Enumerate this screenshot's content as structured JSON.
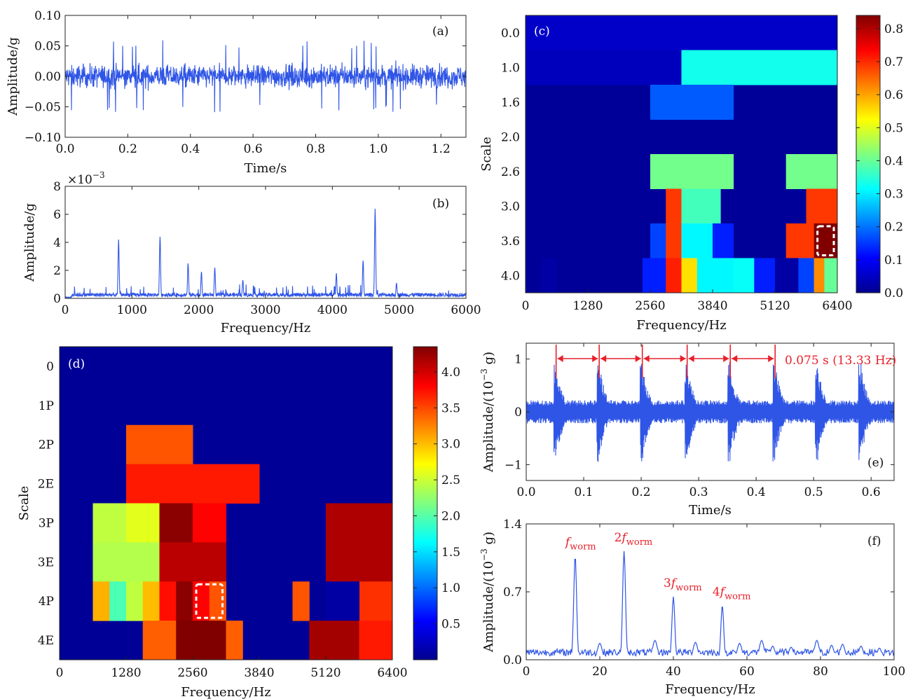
{
  "chart_data": [
    {
      "id": "a",
      "type": "line",
      "panel_label": "(a)",
      "xlabel": "Time/s",
      "ylabel": "Amplitude/g",
      "xlim": [
        0,
        1.28
      ],
      "ylim": [
        -0.1,
        0.1
      ],
      "xticks": [
        0.0,
        0.2,
        0.4,
        0.6,
        0.8,
        1.0,
        1.2
      ],
      "xtick_labels": [
        "0.0",
        "0.2",
        "0.4",
        "0.6",
        "0.8",
        "1.0",
        "1.2"
      ],
      "yticks": [
        -0.1,
        -0.05,
        0.0,
        0.05,
        0.1
      ],
      "ytick_labels": [
        "−0.10",
        "−0.05",
        "0.00",
        "0.05",
        "0.10"
      ],
      "color": "#2f55e6",
      "signal": {
        "kind": "broadband-noise",
        "envelope": 0.02,
        "peak": 0.06
      }
    },
    {
      "id": "b",
      "type": "line",
      "panel_label": "(b)",
      "xlabel": "Frequency/Hz",
      "ylabel": "Amplitude/g",
      "y_multiplier": "×10",
      "y_exponent": "−3",
      "xlim": [
        0,
        6000
      ],
      "ylim": [
        0,
        8
      ],
      "xticks": [
        0,
        1000,
        2000,
        3000,
        4000,
        5000,
        6000
      ],
      "xtick_labels": [
        "0",
        "1000",
        "2000",
        "3000",
        "4000",
        "5000",
        "6000"
      ],
      "yticks": [
        0,
        2,
        4,
        6,
        8
      ],
      "ytick_labels": [
        "0",
        "2",
        "4",
        "6",
        "8"
      ],
      "color": "#2f55e6",
      "baseline": 0.3,
      "peaks": [
        {
          "x": 800,
          "y": 4.2
        },
        {
          "x": 1420,
          "y": 4.4
        },
        {
          "x": 1840,
          "y": 2.5
        },
        {
          "x": 2040,
          "y": 1.9
        },
        {
          "x": 2240,
          "y": 2.2
        },
        {
          "x": 2660,
          "y": 1.3
        },
        {
          "x": 4060,
          "y": 1.8
        },
        {
          "x": 4460,
          "y": 2.7
        },
        {
          "x": 4640,
          "y": 6.4
        },
        {
          "x": 4960,
          "y": 1.1
        }
      ]
    },
    {
      "id": "c",
      "type": "heatmap",
      "panel_label": "(c)",
      "xlabel": "Frequency/Hz",
      "ylabel": "Scale",
      "xlim": [
        0,
        6400
      ],
      "xticks": [
        0,
        1280,
        2560,
        3840,
        5120,
        6400
      ],
      "xtick_labels": [
        "0",
        "1280",
        "2560",
        "3840",
        "5120",
        "6400"
      ],
      "rows": [
        "0.0",
        "1.0",
        "1.6",
        "2.0",
        "2.6",
        "3.0",
        "3.6",
        "4.0"
      ],
      "colorbar": {
        "min": 0,
        "max": 0.84,
        "ticks": [
          0.0,
          0.1,
          0.2,
          0.3,
          0.4,
          0.5,
          0.6,
          0.7,
          0.8
        ],
        "tick_labels": [
          "0.0",
          "0.1",
          "0.2",
          "0.3",
          "0.4",
          "0.5",
          "0.6",
          "0.7",
          "0.8"
        ]
      },
      "background": 0.02,
      "highlight": {
        "row": 6,
        "x0": 5920,
        "x1": 6400
      },
      "cells": [
        {
          "row": 0,
          "x0": 0,
          "x1": 6400,
          "v": 0.06
        },
        {
          "row": 1,
          "x0": 0,
          "x1": 3200,
          "v": 0.05
        },
        {
          "row": 1,
          "x0": 3200,
          "x1": 6400,
          "v": 0.33
        },
        {
          "row": 2,
          "x0": 2560,
          "x1": 4266,
          "v": 0.18
        },
        {
          "row": 4,
          "x0": 2560,
          "x1": 4266,
          "v": 0.41
        },
        {
          "row": 4,
          "x0": 5346,
          "x1": 6400,
          "v": 0.41
        },
        {
          "row": 5,
          "x0": 2880,
          "x1": 3200,
          "v": 0.69
        },
        {
          "row": 5,
          "x0": 3200,
          "x1": 4000,
          "v": 0.37
        },
        {
          "row": 5,
          "x0": 5760,
          "x1": 6400,
          "v": 0.69
        },
        {
          "row": 6,
          "x0": 2560,
          "x1": 2880,
          "v": 0.16
        },
        {
          "row": 6,
          "x0": 2880,
          "x1": 3200,
          "v": 0.69
        },
        {
          "row": 6,
          "x0": 3200,
          "x1": 3840,
          "v": 0.31
        },
        {
          "row": 6,
          "x0": 3840,
          "x1": 4266,
          "v": 0.13
        },
        {
          "row": 6,
          "x0": 5346,
          "x1": 5920,
          "v": 0.69
        },
        {
          "row": 6,
          "x0": 5920,
          "x1": 6400,
          "v": 0.84
        },
        {
          "row": 7,
          "x0": 320,
          "x1": 640,
          "v": 0.03
        },
        {
          "row": 7,
          "x0": 2400,
          "x1": 2880,
          "v": 0.13
        },
        {
          "row": 7,
          "x0": 2880,
          "x1": 3200,
          "v": 0.71
        },
        {
          "row": 7,
          "x0": 3200,
          "x1": 3520,
          "v": 0.55
        },
        {
          "row": 7,
          "x0": 3520,
          "x1": 4266,
          "v": 0.31
        },
        {
          "row": 7,
          "x0": 4266,
          "x1": 4693,
          "v": 0.32
        },
        {
          "row": 7,
          "x0": 4693,
          "x1": 5120,
          "v": 0.13
        },
        {
          "row": 7,
          "x0": 5120,
          "x1": 5600,
          "v": 0.03
        },
        {
          "row": 7,
          "x0": 5600,
          "x1": 5920,
          "v": 0.16
        },
        {
          "row": 7,
          "x0": 5920,
          "x1": 6133,
          "v": 0.62
        },
        {
          "row": 7,
          "x0": 6133,
          "x1": 6400,
          "v": 0.4
        }
      ]
    },
    {
      "id": "d",
      "type": "heatmap",
      "panel_label": "(d)",
      "xlabel": "Frequency/Hz",
      "ylabel": "Scale",
      "xlim": [
        0,
        6400
      ],
      "xticks": [
        0,
        1280,
        2560,
        3840,
        5120,
        6400
      ],
      "xtick_labels": [
        "0",
        "1280",
        "2560",
        "3840",
        "5120",
        "6400"
      ],
      "rows": [
        "0",
        "1P",
        "2P",
        "2E",
        "3P",
        "3E",
        "4P",
        "4E"
      ],
      "colorbar": {
        "min": 0,
        "max": 4.35,
        "ticks": [
          0.5,
          1.0,
          1.5,
          2.0,
          2.5,
          3.0,
          3.5,
          4.0
        ],
        "tick_labels": [
          "0.5",
          "1.0",
          "1.5",
          "2.0",
          "2.5",
          "3.0",
          "3.5",
          "4.0"
        ]
      },
      "background": 0.1,
      "highlight": {
        "row": 6,
        "x0": 2560,
        "x1": 3200
      },
      "cells": [
        {
          "row": 2,
          "x0": 1280,
          "x1": 2560,
          "v": 3.45
        },
        {
          "row": 3,
          "x0": 1280,
          "x1": 3840,
          "v": 3.7
        },
        {
          "row": 4,
          "x0": 640,
          "x1": 1280,
          "v": 2.45
        },
        {
          "row": 4,
          "x0": 1280,
          "x1": 1920,
          "v": 2.6
        },
        {
          "row": 4,
          "x0": 1920,
          "x1": 2560,
          "v": 4.3
        },
        {
          "row": 4,
          "x0": 2560,
          "x1": 3200,
          "v": 3.8
        },
        {
          "row": 4,
          "x0": 5120,
          "x1": 6400,
          "v": 4.15
        },
        {
          "row": 5,
          "x0": 640,
          "x1": 1920,
          "v": 2.4
        },
        {
          "row": 5,
          "x0": 1920,
          "x1": 3200,
          "v": 4.1
        },
        {
          "row": 5,
          "x0": 5120,
          "x1": 6400,
          "v": 4.15
        },
        {
          "row": 6,
          "x0": 640,
          "x1": 960,
          "v": 3.05
        },
        {
          "row": 6,
          "x0": 960,
          "x1": 1280,
          "v": 1.95
        },
        {
          "row": 6,
          "x0": 1280,
          "x1": 1600,
          "v": 2.45
        },
        {
          "row": 6,
          "x0": 1600,
          "x1": 1920,
          "v": 3.0
        },
        {
          "row": 6,
          "x0": 1920,
          "x1": 2240,
          "v": 3.75
        },
        {
          "row": 6,
          "x0": 2240,
          "x1": 2560,
          "v": 4.3
        },
        {
          "row": 6,
          "x0": 2560,
          "x1": 2880,
          "v": 3.8
        },
        {
          "row": 6,
          "x0": 2880,
          "x1": 3200,
          "v": 3.45
        },
        {
          "row": 6,
          "x0": 4480,
          "x1": 4800,
          "v": 3.45
        },
        {
          "row": 6,
          "x0": 5120,
          "x1": 5760,
          "v": 0.15
        },
        {
          "row": 6,
          "x0": 5760,
          "x1": 6080,
          "v": 3.6
        },
        {
          "row": 6,
          "x0": 6080,
          "x1": 6400,
          "v": 3.6
        },
        {
          "row": 5,
          "x0": 5440,
          "x1": 5760,
          "v": 4.15
        },
        {
          "row": 6,
          "x0": 5440,
          "x1": 5760,
          "v": 0.15
        },
        {
          "row": 7,
          "x0": 1600,
          "x1": 2240,
          "v": 3.4
        },
        {
          "row": 7,
          "x0": 2240,
          "x1": 3200,
          "v": 4.35
        },
        {
          "row": 7,
          "x0": 3200,
          "x1": 3520,
          "v": 3.4
        },
        {
          "row": 7,
          "x0": 4800,
          "x1": 5440,
          "v": 4.2
        },
        {
          "row": 7,
          "x0": 5440,
          "x1": 5760,
          "v": 4.2
        },
        {
          "row": 7,
          "x0": 5760,
          "x1": 6400,
          "v": 3.7
        }
      ]
    },
    {
      "id": "e",
      "type": "line",
      "panel_label": "(e)",
      "xlabel": "Time/s",
      "ylabel": "Amplitude/(10",
      "ylabel_exp": "−3",
      "ylabel_unit": " g)",
      "xlim": [
        0,
        0.64
      ],
      "ylim": [
        -1.3,
        1.3
      ],
      "xticks": [
        0.0,
        0.1,
        0.2,
        0.3,
        0.4,
        0.5,
        0.6
      ],
      "xtick_labels": [
        "0.0",
        "0.1",
        "0.2",
        "0.3",
        "0.4",
        "0.5",
        "0.6"
      ],
      "yticks": [
        -1,
        0,
        1
      ],
      "ytick_labels": [
        "−1",
        "0",
        "1"
      ],
      "color": "#2f55e6",
      "impulse_times": [
        0.052,
        0.127,
        0.202,
        0.28,
        0.355,
        0.433,
        0.507,
        0.582
      ],
      "marker_times": [
        0.052,
        0.127,
        0.202,
        0.28,
        0.355,
        0.433
      ],
      "annotation": "0.075 s (13.33 Hz)",
      "annotation_color": "#e8202a"
    },
    {
      "id": "f",
      "type": "line",
      "panel_label": "(f)",
      "xlabel": "Frequency/Hz",
      "ylabel": "Amplitude/(10",
      "ylabel_exp": "−3",
      "ylabel_unit": " g)",
      "xlim": [
        0,
        100
      ],
      "ylim": [
        0,
        1.4
      ],
      "xticks": [
        0,
        20,
        40,
        60,
        80,
        100
      ],
      "xtick_labels": [
        "0",
        "20",
        "40",
        "60",
        "80",
        "100"
      ],
      "yticks": [
        0,
        0.7,
        1.4
      ],
      "ytick_labels": [
        "0.0",
        "0.7",
        "1.4"
      ],
      "color": "#2f55e6",
      "baseline": 0.08,
      "peaks": [
        {
          "x": 13.3,
          "y": 1.07,
          "label_pre": "",
          "label_base": "f",
          "label_sub": "worm"
        },
        {
          "x": 26.6,
          "y": 1.12,
          "label_pre": "2",
          "label_base": "f",
          "label_sub": "worm"
        },
        {
          "x": 40.0,
          "y": 0.65,
          "label_pre": "3",
          "label_base": "f",
          "label_sub": "worm"
        },
        {
          "x": 53.3,
          "y": 0.56,
          "label_pre": "4",
          "label_base": "f",
          "label_sub": "worm"
        }
      ],
      "minor_bumps": [
        {
          "x": 20,
          "y": 0.17
        },
        {
          "x": 35,
          "y": 0.2
        },
        {
          "x": 46,
          "y": 0.18
        },
        {
          "x": 58,
          "y": 0.17
        },
        {
          "x": 64,
          "y": 0.2
        },
        {
          "x": 67,
          "y": 0.14
        },
        {
          "x": 72,
          "y": 0.13
        },
        {
          "x": 79,
          "y": 0.2
        },
        {
          "x": 83,
          "y": 0.15
        },
        {
          "x": 86,
          "y": 0.16
        },
        {
          "x": 91,
          "y": 0.14
        },
        {
          "x": 96,
          "y": 0.12
        }
      ],
      "annotation_color": "#e8202a"
    }
  ]
}
